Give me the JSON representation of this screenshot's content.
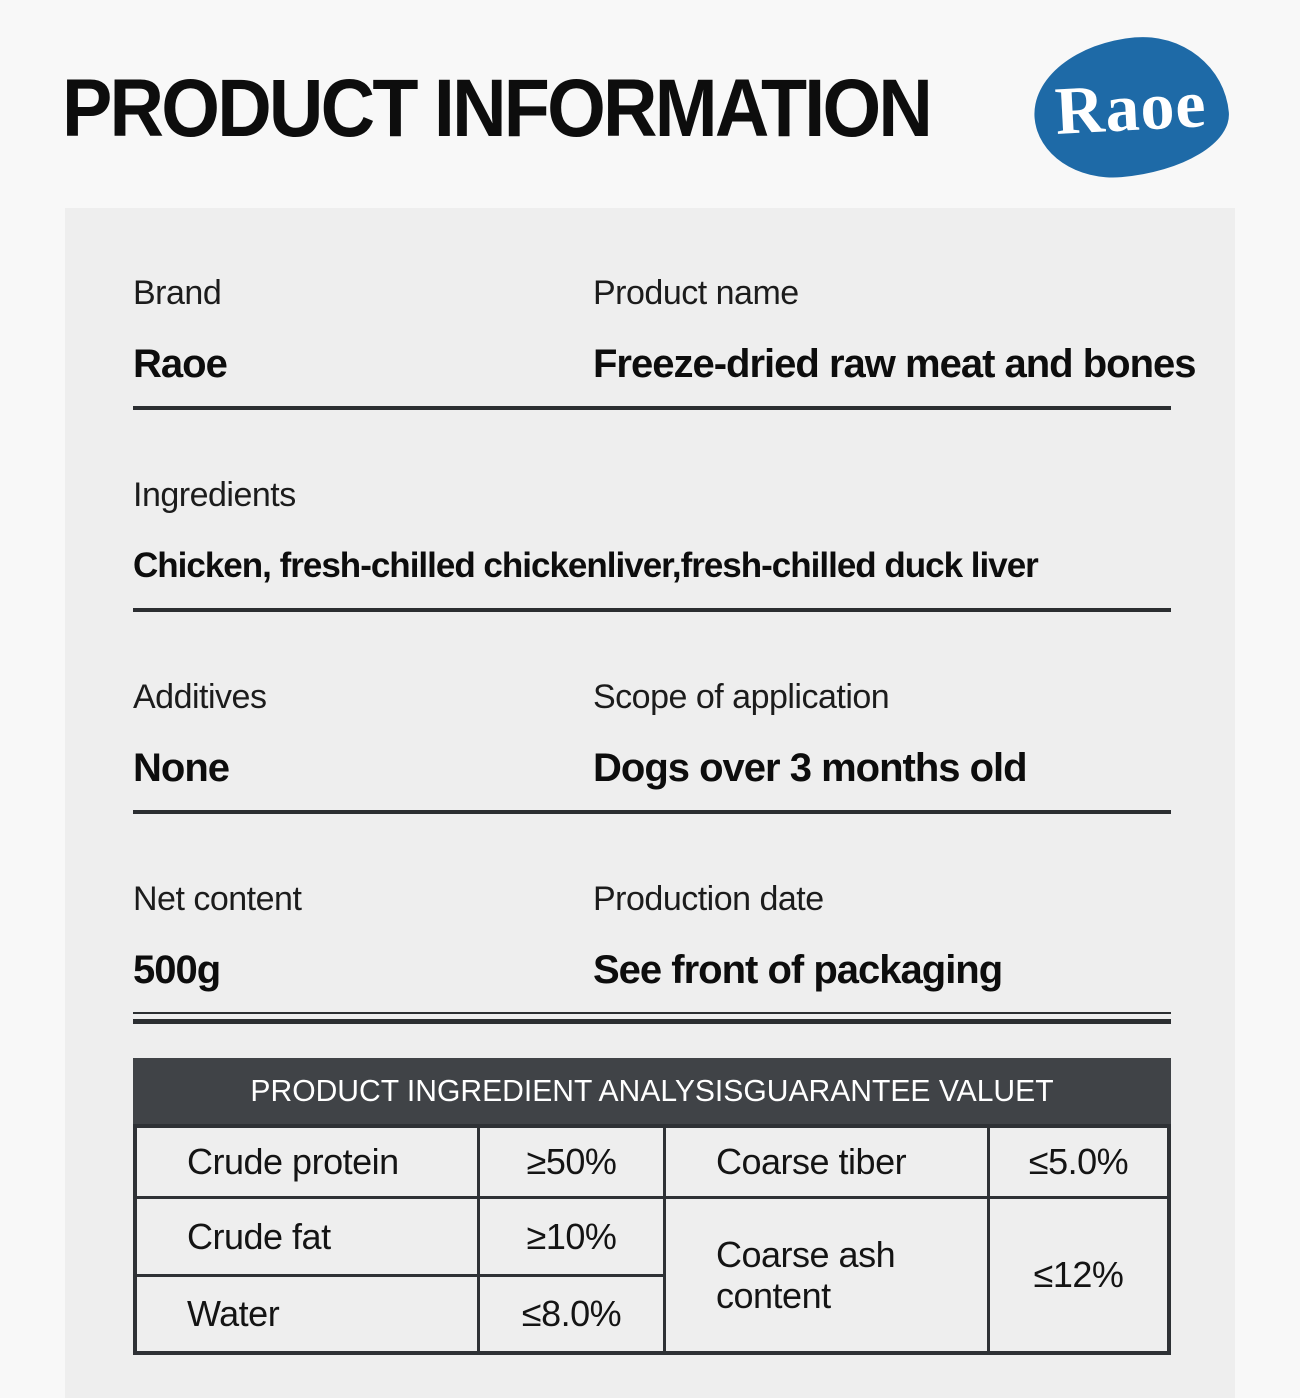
{
  "page": {
    "title": "PRODUCT INFORMATION",
    "logo_text": "Raoe"
  },
  "colors": {
    "brand-blue": "#1e6aa7",
    "rule-dark": "#2b2e31",
    "table-border": "#2e3135",
    "header-dark": "#404347",
    "panel-gray": "#eeeeee",
    "page-bg": "#f8f8f8"
  },
  "sections": [
    {
      "columns": [
        {
          "label": "Brand",
          "value": "Raoe"
        },
        {
          "label": "Product name",
          "value": "Freeze-dried raw meat and bones"
        }
      ]
    },
    {
      "columns": [
        {
          "label": "Ingredients",
          "value": "Chicken, fresh-chilled chickenliver,fresh-chilled duck liver"
        }
      ]
    },
    {
      "columns": [
        {
          "label": "Additives",
          "value": "None"
        },
        {
          "label": "Scope of application",
          "value": "Dogs over 3 months old"
        }
      ]
    },
    {
      "columns": [
        {
          "label": "Net content",
          "value": "500g"
        },
        {
          "label": "Production date",
          "value": "See front of packaging"
        }
      ]
    }
  ],
  "table": {
    "title": "PRODUCT INGREDIENT ANALYSISGUARANTEE VALUET",
    "rows": [
      [
        "Crude protein",
        "≥50%",
        "Coarse tiber",
        "≤5.0%"
      ],
      [
        "Crude fat",
        "≥10%",
        "Coarse ash content",
        "≤12%"
      ],
      [
        "Water",
        "≤8.0%"
      ]
    ]
  }
}
